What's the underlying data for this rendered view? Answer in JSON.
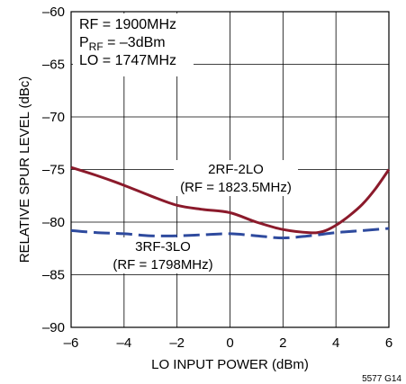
{
  "chart_data": {
    "type": "line",
    "title": "",
    "xlabel": "LO INPUT POWER (dBm)",
    "ylabel": "RELATIVE SPUR LEVEL (dBc)",
    "xlim": [
      -6,
      6
    ],
    "ylim": [
      -90,
      -60
    ],
    "x_ticks": [
      "–6",
      "–4",
      "–2",
      "0",
      "2",
      "4",
      "6"
    ],
    "y_ticks": [
      "–60",
      "–65",
      "–70",
      "–75",
      "–80",
      "–85",
      "–90"
    ],
    "x_tick_values": [
      -6,
      -4,
      -2,
      0,
      2,
      4,
      6
    ],
    "y_tick_values": [
      -60,
      -65,
      -70,
      -75,
      -80,
      -85,
      -90
    ],
    "grid": true,
    "conditions": {
      "line1": "RF = 1900MHz",
      "line2_prefix": "P",
      "line2_sub": "RF",
      "line2_suffix": " = –3dBm",
      "line3": "LO = 1747MHz"
    },
    "series": [
      {
        "name": "2RF-2LO",
        "sublabel": "(RF = 1823.5MHz)",
        "color": "#8b1a2b",
        "dash": "solid",
        "x": [
          -6,
          -5,
          -4,
          -3,
          -2,
          -1,
          0,
          1,
          2,
          3,
          3.5,
          4,
          4.5,
          5,
          5.5,
          6
        ],
        "y": [
          -74.8,
          -75.6,
          -76.5,
          -77.5,
          -78.4,
          -78.8,
          -79.1,
          -80.0,
          -80.7,
          -81.0,
          -80.9,
          -80.3,
          -79.4,
          -78.3,
          -76.8,
          -75.0
        ]
      },
      {
        "name": "3RF-3LO",
        "sublabel": "(RF = 1798MHz)",
        "color": "#2e4a9e",
        "dash": "dashed",
        "x": [
          -6,
          -5,
          -4,
          -3,
          -2,
          -1,
          0,
          1,
          2,
          3,
          4,
          5,
          6
        ],
        "y": [
          -80.8,
          -81.0,
          -81.1,
          -81.3,
          -81.3,
          -81.2,
          -81.1,
          -81.3,
          -81.5,
          -81.3,
          -81.0,
          -80.8,
          -80.6
        ]
      }
    ],
    "figure_id": "5577 G14"
  }
}
